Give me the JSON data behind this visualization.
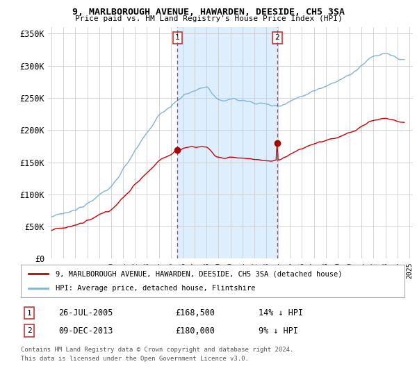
{
  "title": "9, MARLBOROUGH AVENUE, HAWARDEN, DEESIDE, CH5 3SA",
  "subtitle": "Price paid vs. HM Land Registry's House Price Index (HPI)",
  "ylim": [
    0,
    360000
  ],
  "yticks": [
    0,
    50000,
    100000,
    150000,
    200000,
    250000,
    300000,
    350000
  ],
  "ytick_labels": [
    "£0",
    "£50K",
    "£100K",
    "£150K",
    "£200K",
    "£250K",
    "£300K",
    "£350K"
  ],
  "sale1_date": "26-JUL-2005",
  "sale1_price": 168500,
  "sale1_pct": "14% ↓ HPI",
  "sale2_date": "09-DEC-2013",
  "sale2_price": 180000,
  "sale2_pct": "9% ↓ HPI",
  "legend_line1": "9, MARLBOROUGH AVENUE, HAWARDEN, DEESIDE, CH5 3SA (detached house)",
  "legend_line2": "HPI: Average price, detached house, Flintshire",
  "footer1": "Contains HM Land Registry data © Crown copyright and database right 2024.",
  "footer2": "This data is licensed under the Open Government Licence v3.0.",
  "hpi_color": "#7fb3d8",
  "price_color": "#cc0000",
  "marker_color": "#aa0000",
  "vline_color": "#cc3333",
  "shade_color": "#ddeeff",
  "sale1_year": 2005.57,
  "sale2_year": 2013.93,
  "background_color": "#ffffff",
  "grid_color": "#cccccc"
}
